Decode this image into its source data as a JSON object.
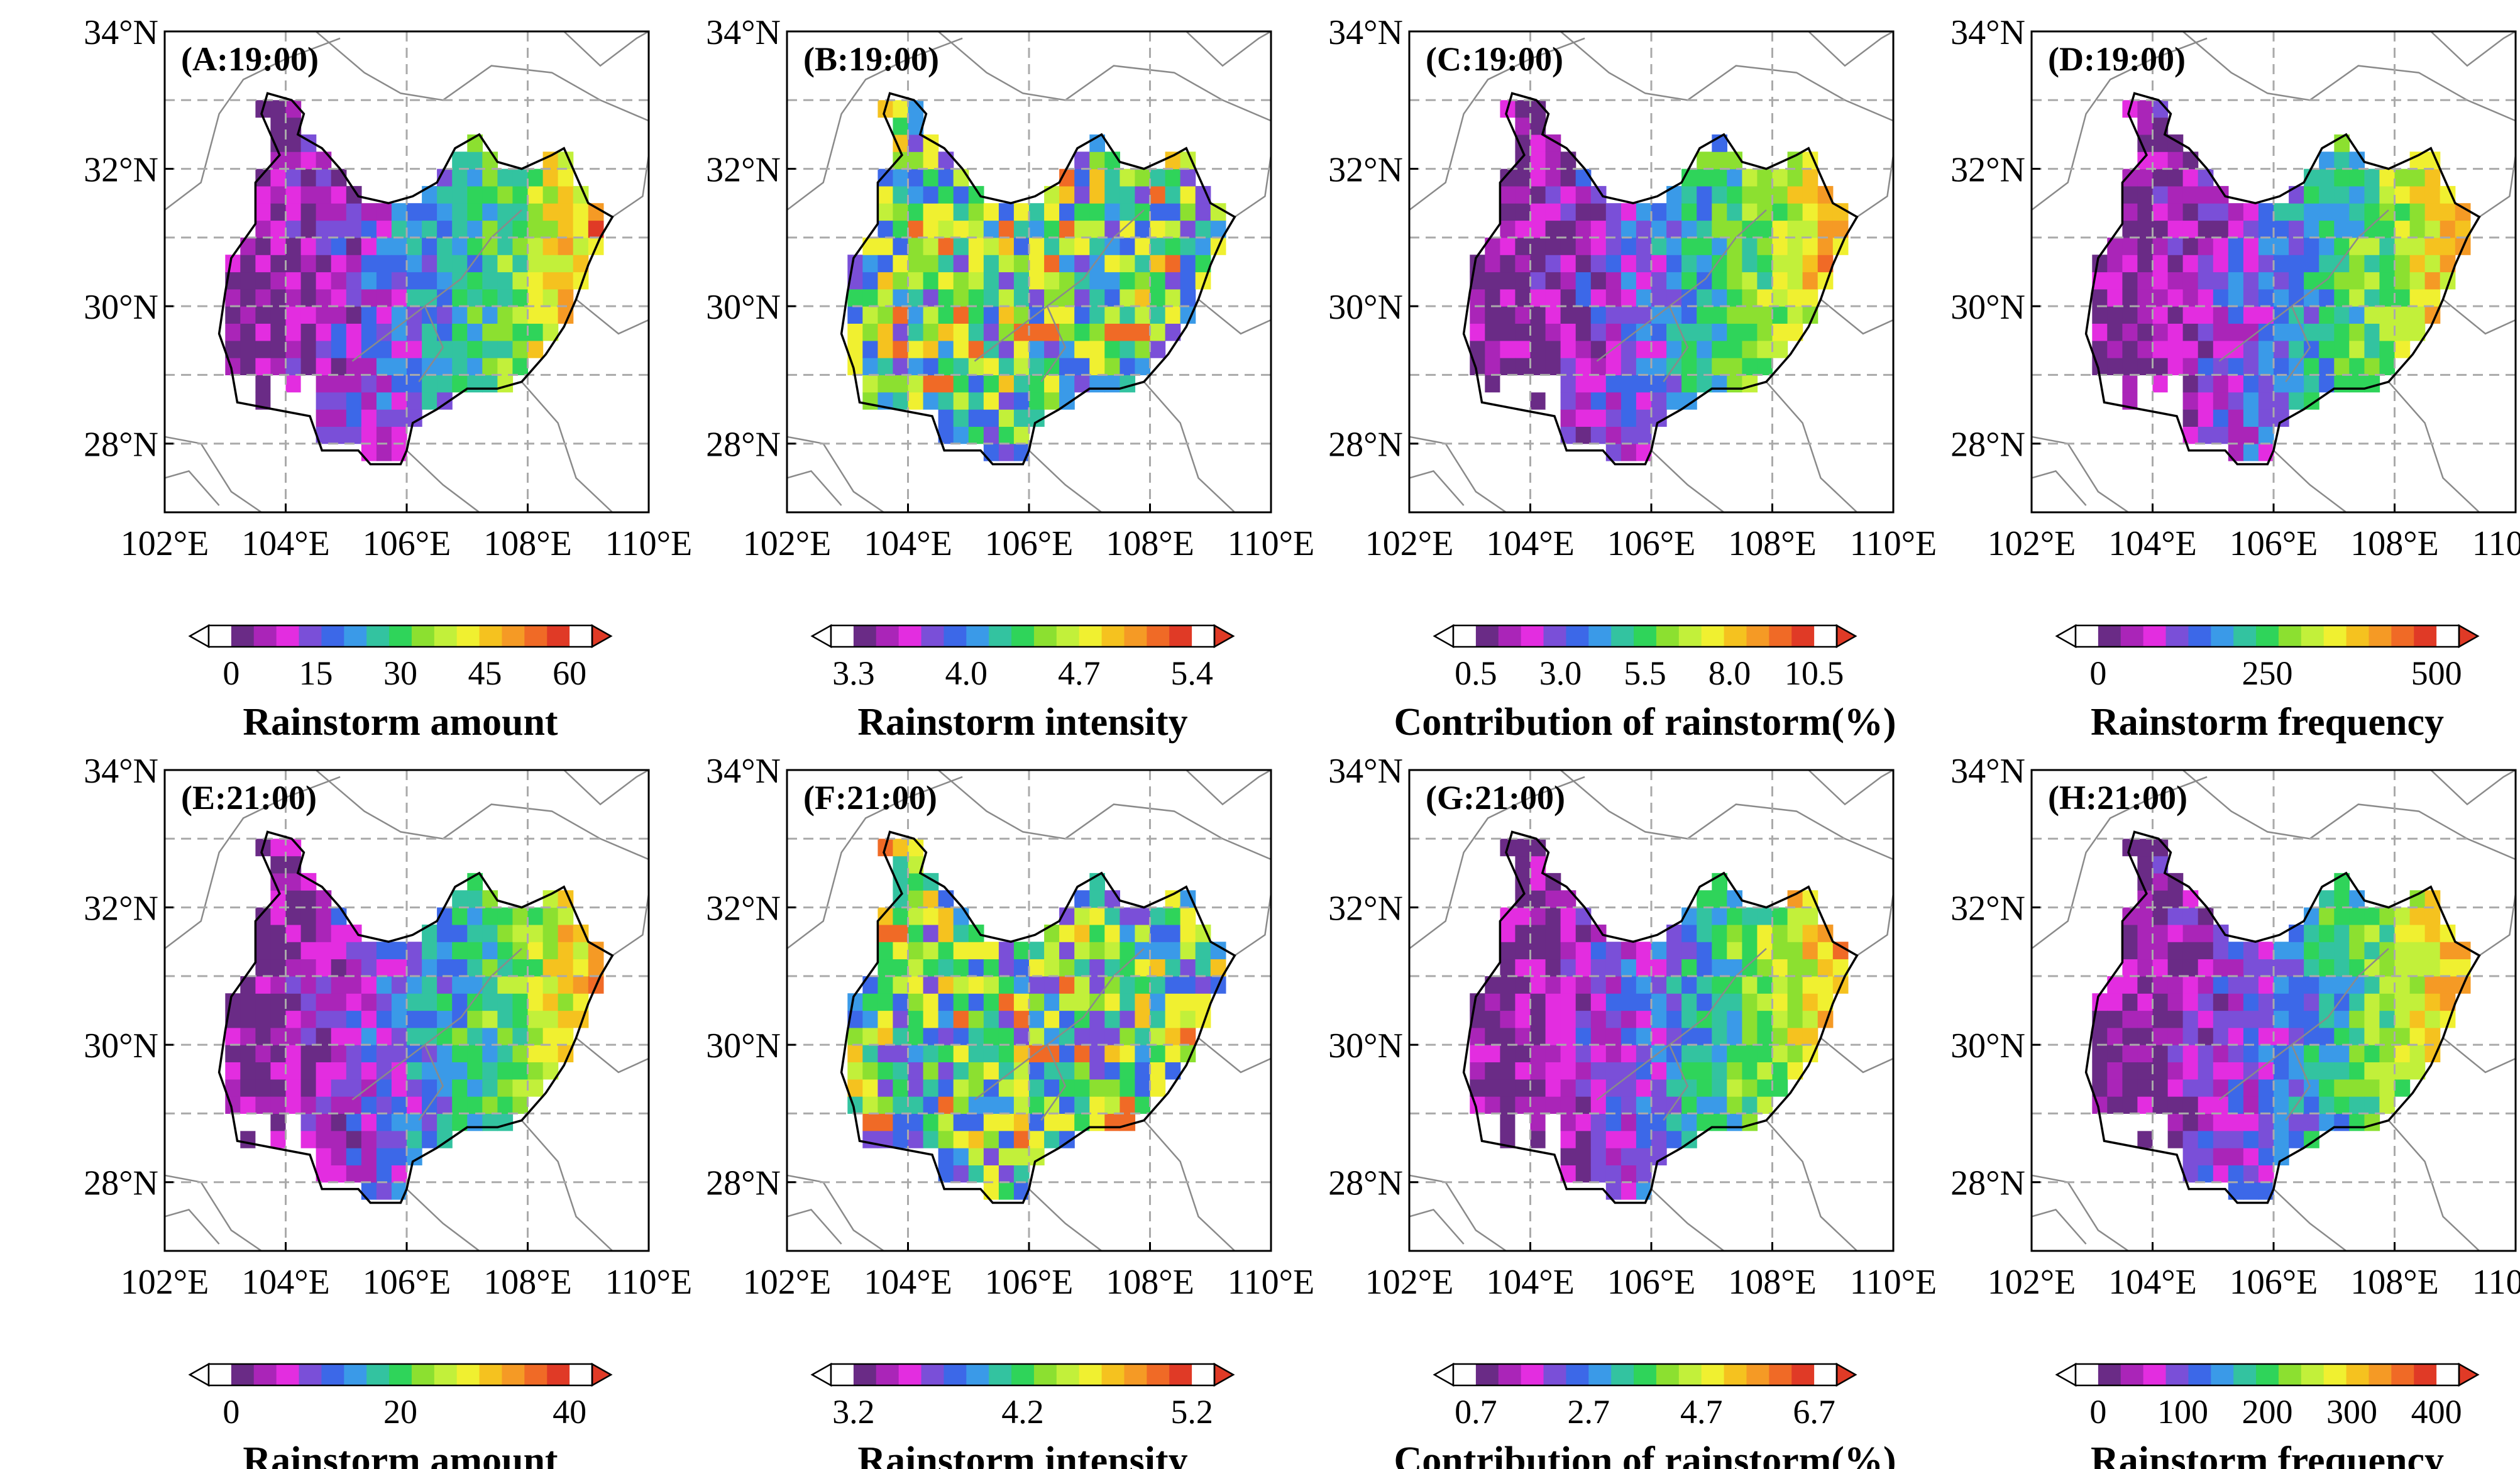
{
  "figure": {
    "lon_ticks": [
      "102°E",
      "104°E",
      "106°E",
      "108°E",
      "110°E"
    ],
    "lat_ticks": [
      "34°N",
      "32°N",
      "30°N",
      "28°N"
    ],
    "lon_range": [
      102,
      110
    ],
    "lat_range": [
      27,
      34
    ]
  },
  "palette": [
    "#6a2b86",
    "#aa25b8",
    "#e32de0",
    "#7a4fd8",
    "#3c68e8",
    "#3a9ae8",
    "#33c3a0",
    "#2fd45a",
    "#8ce030",
    "#c2f03a",
    "#f0f030",
    "#f5c21f",
    "#f59a25",
    "#f06a26",
    "#e03a26"
  ],
  "panels": [
    {
      "label": "(A:19:00)",
      "field": "amount",
      "colorbar": {
        "ticks": [
          "0",
          "15",
          "30",
          "45",
          "60"
        ],
        "title": "Rainstorm amount"
      }
    },
    {
      "label": "(B:19:00)",
      "field": "intensity",
      "colorbar": {
        "ticks": [
          "3.3",
          "4.0",
          "4.7",
          "5.4"
        ],
        "title": "Rainstorm intensity"
      }
    },
    {
      "label": "(C:19:00)",
      "field": "contribution",
      "colorbar": {
        "ticks": [
          "0.5",
          "3.0",
          "5.5",
          "8.0",
          "10.5"
        ],
        "title": "Contribution of rainstorm(%)"
      }
    },
    {
      "label": "(D:19:00)",
      "field": "frequency",
      "colorbar": {
        "ticks": [
          "0",
          "250",
          "500"
        ],
        "title": "Rainstorm frequency"
      }
    },
    {
      "label": "(E:21:00)",
      "field": "amount",
      "colorbar": {
        "ticks": [
          "0",
          "20",
          "40"
        ],
        "title": "Rainstorm amount"
      }
    },
    {
      "label": "(F:21:00)",
      "field": "intensity",
      "colorbar": {
        "ticks": [
          "3.2",
          "4.2",
          "5.2"
        ],
        "title": "Rainstorm intensity"
      }
    },
    {
      "label": "(G:21:00)",
      "field": "contribution",
      "colorbar": {
        "ticks": [
          "0.7",
          "2.7",
          "4.7",
          "6.7"
        ],
        "title": "Contribution of rainstorm(%)"
      }
    },
    {
      "label": "(H:21:00)",
      "field": "frequency",
      "colorbar": {
        "ticks": [
          "0",
          "100",
          "200",
          "300",
          "400"
        ],
        "title": "Rainstorm frequency"
      }
    }
  ]
}
